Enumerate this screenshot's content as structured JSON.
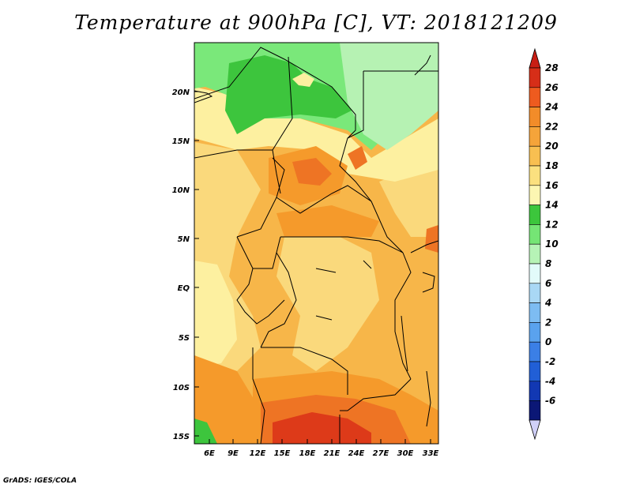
{
  "title": "Temperature at 900hPa [C], VT: 2018121209",
  "credit": "GrADS: IGES/COLA",
  "map": {
    "lat_labels": [
      "20N",
      "15N",
      "10N",
      "5N",
      "EQ",
      "5S",
      "10S",
      "15S"
    ],
    "lon_labels": [
      "6E",
      "9E",
      "12E",
      "15E",
      "18E",
      "21E",
      "24E",
      "27E",
      "30E",
      "33E"
    ],
    "colors": {
      "c16_18": "#fdf0a0",
      "c18_20": "#fad97c",
      "c20_22": "#f7b649",
      "c22_24": "#f59a2b",
      "c24_26": "#ee7424",
      "c26_28": "#dd3a19",
      "c14_16": "#3dc53d",
      "c12_14": "#7ae87a",
      "c10_12": "#b6f2b3"
    }
  },
  "colorbar": {
    "labels": [
      "28",
      "26",
      "24",
      "22",
      "20",
      "18",
      "16",
      "14",
      "12",
      "10",
      "8",
      "6",
      "4",
      "2",
      "0",
      "-2",
      "-4",
      "-6"
    ],
    "colors": [
      "#d62e18",
      "#ee5b1f",
      "#f28c29",
      "#f5a43a",
      "#f8bf51",
      "#fbe07f",
      "#fcf6b2",
      "#3cc63c",
      "#75e575",
      "#b6f3b6",
      "#e2fbfa",
      "#a9d8f5",
      "#7dbcf2",
      "#5aa2ee",
      "#3b7fe6",
      "#215fd6",
      "#1238b3",
      "#0b1776"
    ],
    "arrow_top_color": "#c81e14",
    "arrow_bottom_color": "#d0d0f8"
  }
}
